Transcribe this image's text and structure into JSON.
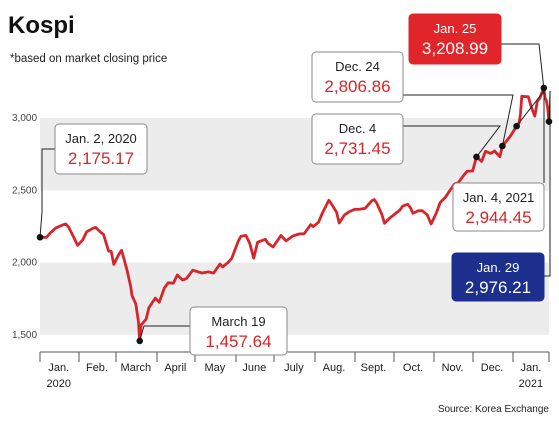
{
  "chart_data": {
    "type": "line",
    "title": "Kospi",
    "subtitle": "*based on market closing price",
    "source": "Source: Korea Exchange",
    "ylim": [
      1450,
      3250
    ],
    "yticks": [
      {
        "value": 1500,
        "label": "1,500"
      },
      {
        "value": 2000,
        "label": "2,000"
      },
      {
        "value": 2500,
        "label": "2,500"
      },
      {
        "value": 3000,
        "label": "3,000"
      }
    ],
    "xlim": [
      "2020-01-02",
      "2021-01-29"
    ],
    "month_labels": [
      {
        "label": "Jan.",
        "sub": "2020",
        "start": "2020-01-01",
        "end": "2020-01-31"
      },
      {
        "label": "Feb.",
        "start": "2020-02-01",
        "end": "2020-02-29"
      },
      {
        "label": "March",
        "start": "2020-03-01",
        "end": "2020-03-31"
      },
      {
        "label": "April",
        "start": "2020-04-01",
        "end": "2020-04-30"
      },
      {
        "label": "May",
        "start": "2020-05-01",
        "end": "2020-05-31"
      },
      {
        "label": "June",
        "start": "2020-06-01",
        "end": "2020-06-30"
      },
      {
        "label": "July",
        "start": "2020-07-01",
        "end": "2020-07-31"
      },
      {
        "label": "Aug.",
        "start": "2020-08-01",
        "end": "2020-08-31"
      },
      {
        "label": "Sept.",
        "start": "2020-09-01",
        "end": "2020-09-30"
      },
      {
        "label": "Oct.",
        "start": "2020-10-01",
        "end": "2020-10-31"
      },
      {
        "label": "Nov.",
        "start": "2020-11-01",
        "end": "2020-11-30"
      },
      {
        "label": "Dec.",
        "start": "2020-12-01",
        "end": "2020-12-31"
      },
      {
        "label": "Jan.",
        "sub": "2021",
        "start": "2021-01-01",
        "end": "2021-01-31"
      }
    ],
    "series": [
      {
        "color": "#d7262b",
        "points": [
          [
            "2020-01-02",
            2175.17
          ],
          [
            "2020-01-07",
            2175
          ],
          [
            "2020-01-10",
            2206
          ],
          [
            "2020-01-14",
            2238
          ],
          [
            "2020-01-17",
            2250
          ],
          [
            "2020-01-20",
            2262
          ],
          [
            "2020-01-22",
            2267
          ],
          [
            "2020-01-24",
            2246
          ],
          [
            "2020-01-28",
            2176
          ],
          [
            "2020-01-31",
            2119
          ],
          [
            "2020-02-04",
            2157
          ],
          [
            "2020-02-07",
            2212
          ],
          [
            "2020-02-12",
            2238
          ],
          [
            "2020-02-14",
            2243
          ],
          [
            "2020-02-18",
            2208
          ],
          [
            "2020-02-20",
            2195
          ],
          [
            "2020-02-24",
            2079
          ],
          [
            "2020-02-26",
            2077
          ],
          [
            "2020-02-28",
            1987
          ],
          [
            "2020-03-03",
            2059
          ],
          [
            "2020-03-05",
            2085
          ],
          [
            "2020-03-09",
            1954
          ],
          [
            "2020-03-12",
            1834
          ],
          [
            "2020-03-13",
            1771
          ],
          [
            "2020-03-16",
            1714
          ],
          [
            "2020-03-18",
            1591
          ],
          [
            "2020-03-19",
            1457.64
          ],
          [
            "2020-03-20",
            1566
          ],
          [
            "2020-03-24",
            1609
          ],
          [
            "2020-03-26",
            1686
          ],
          [
            "2020-03-31",
            1754
          ],
          [
            "2020-04-03",
            1725
          ],
          [
            "2020-04-07",
            1823
          ],
          [
            "2020-04-10",
            1860
          ],
          [
            "2020-04-14",
            1857
          ],
          [
            "2020-04-17",
            1914
          ],
          [
            "2020-04-21",
            1879
          ],
          [
            "2020-04-24",
            1889
          ],
          [
            "2020-04-29",
            1947
          ],
          [
            "2020-05-06",
            1928
          ],
          [
            "2020-05-11",
            1935
          ],
          [
            "2020-05-15",
            1927
          ],
          [
            "2020-05-20",
            1990
          ],
          [
            "2020-05-22",
            1970
          ],
          [
            "2020-05-26",
            1999
          ],
          [
            "2020-05-29",
            2029
          ],
          [
            "2020-06-03",
            2147
          ],
          [
            "2020-06-05",
            2181
          ],
          [
            "2020-06-09",
            2188
          ],
          [
            "2020-06-12",
            2132
          ],
          [
            "2020-06-15",
            2030
          ],
          [
            "2020-06-18",
            2141
          ],
          [
            "2020-06-24",
            2161
          ],
          [
            "2020-06-26",
            2134
          ],
          [
            "2020-06-30",
            2108
          ],
          [
            "2020-07-06",
            2187
          ],
          [
            "2020-07-10",
            2150
          ],
          [
            "2020-07-15",
            2183
          ],
          [
            "2020-07-20",
            2198
          ],
          [
            "2020-07-24",
            2200
          ],
          [
            "2020-07-29",
            2263
          ],
          [
            "2020-07-31",
            2249
          ],
          [
            "2020-08-04",
            2279
          ],
          [
            "2020-08-07",
            2342
          ],
          [
            "2020-08-12",
            2432
          ],
          [
            "2020-08-14",
            2407
          ],
          [
            "2020-08-18",
            2348
          ],
          [
            "2020-08-20",
            2274
          ],
          [
            "2020-08-24",
            2329
          ],
          [
            "2020-08-28",
            2353
          ],
          [
            "2020-09-01",
            2369
          ],
          [
            "2020-09-04",
            2368
          ],
          [
            "2020-09-09",
            2375
          ],
          [
            "2020-09-14",
            2427
          ],
          [
            "2020-09-16",
            2436
          ],
          [
            "2020-09-18",
            2412
          ],
          [
            "2020-09-22",
            2333
          ],
          [
            "2020-09-24",
            2272
          ],
          [
            "2020-09-28",
            2308
          ],
          [
            "2020-10-06",
            2365
          ],
          [
            "2020-10-08",
            2391
          ],
          [
            "2020-10-12",
            2403
          ],
          [
            "2020-10-14",
            2380
          ],
          [
            "2020-10-16",
            2341
          ],
          [
            "2020-10-20",
            2358
          ],
          [
            "2020-10-23",
            2360
          ],
          [
            "2020-10-27",
            2330
          ],
          [
            "2020-10-30",
            2267
          ],
          [
            "2020-11-03",
            2343
          ],
          [
            "2020-11-06",
            2416
          ],
          [
            "2020-11-10",
            2452
          ],
          [
            "2020-11-13",
            2493
          ],
          [
            "2020-11-17",
            2543
          ],
          [
            "2020-11-20",
            2553
          ],
          [
            "2020-11-24",
            2602
          ],
          [
            "2020-11-27",
            2633
          ],
          [
            "2020-12-01",
            2634
          ],
          [
            "2020-12-04",
            2731.45
          ],
          [
            "2020-12-08",
            2700
          ],
          [
            "2020-12-11",
            2770
          ],
          [
            "2020-12-15",
            2756
          ],
          [
            "2020-12-18",
            2772
          ],
          [
            "2020-12-22",
            2733
          ],
          [
            "2020-12-24",
            2806.86
          ],
          [
            "2020-12-30",
            2873
          ],
          [
            "2021-01-04",
            2944.45
          ],
          [
            "2021-01-06",
            2968
          ],
          [
            "2021-01-07",
            3031
          ],
          [
            "2021-01-08",
            3152
          ],
          [
            "2021-01-11",
            3148
          ],
          [
            "2021-01-13",
            3148
          ],
          [
            "2021-01-15",
            3085
          ],
          [
            "2021-01-18",
            3013
          ],
          [
            "2021-01-20",
            3114
          ],
          [
            "2021-01-22",
            3140
          ],
          [
            "2021-01-25",
            3208.99
          ],
          [
            "2021-01-26",
            3140
          ],
          [
            "2021-01-27",
            3122
          ],
          [
            "2021-01-28",
            3069
          ],
          [
            "2021-01-29",
            2976.21
          ]
        ]
      }
    ],
    "annotations": [
      {
        "date_label": "Jan. 2, 2020",
        "value_label": "2,175.17",
        "x": "2020-01-02",
        "y": 2175.17,
        "style": "white"
      },
      {
        "date_label": "March 19",
        "value_label": "1,457.64",
        "x": "2020-03-19",
        "y": 1457.64,
        "style": "white"
      },
      {
        "date_label": "Dec. 24",
        "value_label": "2,806.86",
        "x": "2020-12-24",
        "y": 2806.86,
        "style": "white"
      },
      {
        "date_label": "Dec. 4",
        "value_label": "2,731.45",
        "x": "2020-12-04",
        "y": 2731.45,
        "style": "white"
      },
      {
        "date_label": "Jan. 4, 2021",
        "value_label": "2,944.45",
        "x": "2021-01-04",
        "y": 2944.45,
        "style": "white"
      },
      {
        "date_label": "Jan. 25",
        "value_label": "3,208.99",
        "x": "2021-01-25",
        "y": 3208.99,
        "style": "red",
        "color": "#e0262b"
      },
      {
        "date_label": "Jan. 29",
        "value_label": "2,976.21",
        "x": "2021-01-29",
        "y": 2976.21,
        "style": "navy",
        "color": "#1c2f8c"
      }
    ]
  }
}
